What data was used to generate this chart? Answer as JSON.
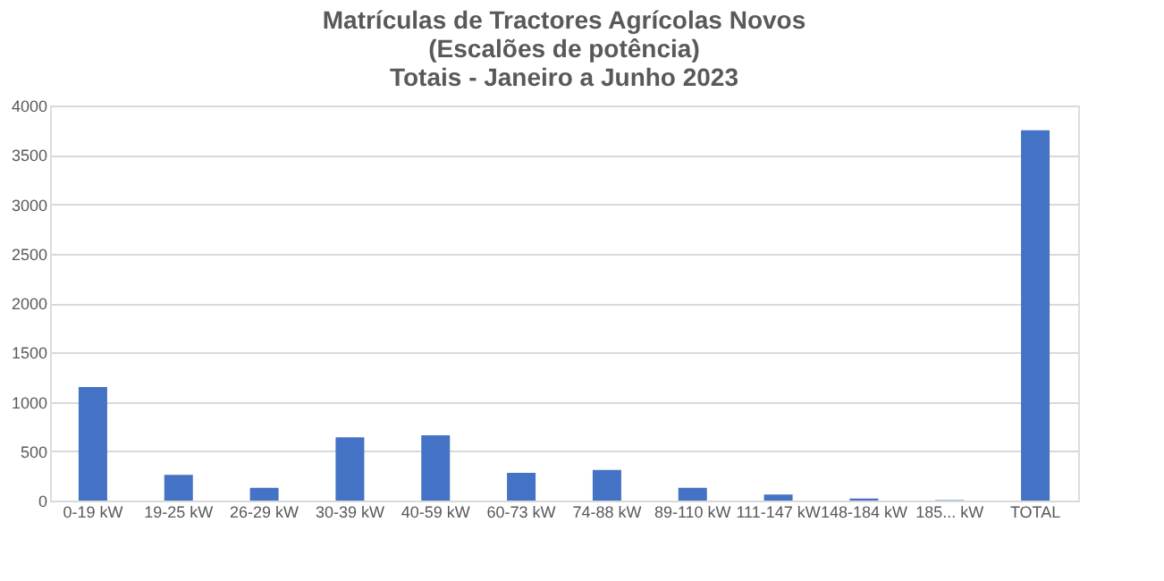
{
  "chart_data": {
    "type": "bar",
    "title": [
      "Matrículas de Tractores Agrícolas Novos",
      "(Escalões de potência)",
      "Totais - Janeiro a Junho 2023"
    ],
    "categories": [
      "0-19 kW",
      "19-25 kW",
      "26-29 kW",
      "30-39 kW",
      "40-59 kW",
      "60-73 kW",
      "74-88 kW",
      "89-110 kW",
      "111-147 kW",
      "148-184 kW",
      "185... kW",
      "TOTAL"
    ],
    "values": [
      1150,
      260,
      130,
      640,
      660,
      280,
      310,
      130,
      60,
      20,
      5,
      3750
    ],
    "color": "#4472c4",
    "ylim": [
      0,
      4000
    ],
    "yticks": [
      0,
      500,
      1000,
      1500,
      2000,
      2500,
      3000,
      3500,
      4000
    ],
    "grid": "y"
  }
}
